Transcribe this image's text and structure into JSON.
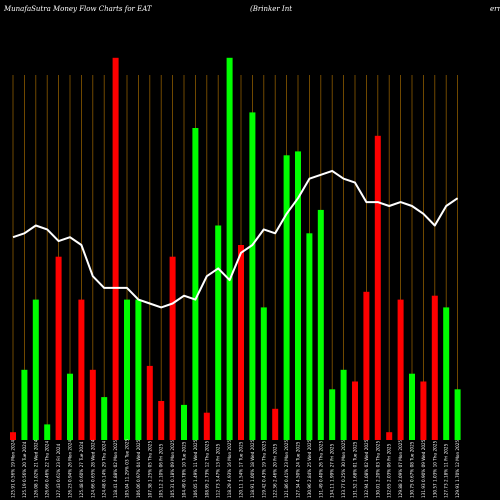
{
  "header": {
    "left": "MunafaSutra  Money Flow  Charts for EAT",
    "right": "(Brinker Int",
    "right_cut": "ern"
  },
  "colors": {
    "background": "#000000",
    "up_bar": "#00ff00",
    "down_bar": "#ff0000",
    "grid": "#8b5a00",
    "line": "#ffffff"
  },
  "chart_data": {
    "type": "bar",
    "categories": [
      "125.91 0.56% 19 Mon 2024",
      "125.19 0.56% 20 Tue 2024",
      "126.08 1.02% 21 Wed 2024",
      "126.66 0.46% 22 Thu 2024",
      "127.43 0.61% 23 Fri 2024",
      "126.23 0.94% 26 Mon 2024",
      "125.48 0.60% 27 Tue 2024",
      "124.66 0.65% 28 Wed 2024",
      "124.48 0.14% 29 Thu 2024",
      "118.41 4.88% 02 Mon 2025",
      "105.04 11.29% 03 Tue 2025",
      "106.06 0.97% 04 Wed 2025",
      "107.38 1.25% 05 Thu 2025",
      "105.12 2.10% 06 Fri 2025",
      "105.31 0.18% 09 Mon 2025",
      "104.49 0.78% 10 Tue 2025",
      "106.05 1.49% 11 Wed 2025",
      "108.95 2.73% 12 Thu 2025",
      "112.73 3.47% 13 Fri 2025",
      "118.29 4.93% 16 Mon 2025",
      "120.11 1.54% 17 Tue 2025",
      "118.91 1.00% 18 Wed 2025",
      "119.42 0.43% 19 Thu 2025",
      "122.36 2.46% 20 Fri 2025",
      "121.86 0.41% 23 Mon 2025",
      "127.34 4.50% 24 Tue 2025",
      "130.96 2.84% 25 Wed 2025",
      "131.49 0.40% 26 Thu 2025",
      "134.11 1.99% 27 Fri 2025",
      "133.77 0.25% 30 Mon 2025",
      "131.52 1.68% 01 Tue 2025",
      "132.94 1.08% 02 Wed 2025",
      "130.01 2.20% 03 Thu 2025",
      "132.65 2.03% 06 Fri 2025",
      "129.88 2.09% 07 Mon 2025",
      "130.75 0.67% 08 Tue 2025",
      "131.93 0.90% 09 Wed 2025",
      "130.57 1.03% 10 Thu 2025",
      "127.73 2.18% 11 Fri 2025",
      "129.91 1.70% 12 Mon 2025"
    ],
    "series": [
      {
        "values": [
          2,
          18,
          36,
          4,
          47,
          17,
          36,
          18,
          11,
          98,
          36,
          36,
          19,
          10,
          47,
          9,
          80,
          7,
          55,
          98,
          50,
          84,
          34,
          8,
          73,
          74,
          53,
          59,
          13,
          18,
          15,
          38,
          78,
          2,
          36,
          17,
          15,
          37,
          34,
          13
        ],
        "direction": [
          "down",
          "up",
          "up",
          "up",
          "down",
          "up",
          "down",
          "down",
          "up",
          "down",
          "up",
          "up",
          "down",
          "down",
          "down",
          "up",
          "up",
          "down",
          "up",
          "up",
          "down",
          "up",
          "up",
          "down",
          "up",
          "up",
          "up",
          "up",
          "up",
          "up",
          "down",
          "down",
          "down",
          "down",
          "down",
          "up",
          "down",
          "down",
          "up",
          "up"
        ]
      },
      {
        "values": [
          52,
          53,
          55,
          54,
          51,
          52,
          50,
          42,
          39,
          39,
          39,
          36,
          35,
          34,
          35,
          37,
          36,
          42,
          44,
          41,
          48,
          50,
          54,
          53,
          58,
          62,
          67,
          68,
          69,
          67,
          66,
          61,
          61,
          60,
          61,
          60,
          58,
          55,
          60,
          62
        ]
      }
    ],
    "ylim": [
      0,
      100
    ],
    "grid": "vertical"
  }
}
